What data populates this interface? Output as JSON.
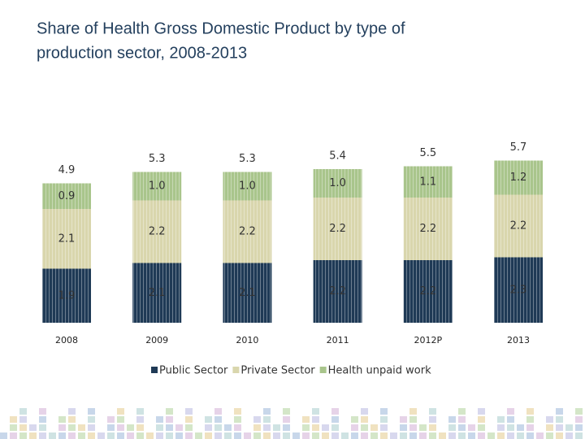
{
  "chart_data": {
    "type": "stacked-bar",
    "title": [
      "Share of Health Gross Domestic Product by type of",
      "production sector, 2008-2013"
    ],
    "categories": [
      "2008",
      "2009",
      "2010",
      "2011",
      "2012P",
      "2013"
    ],
    "series": [
      {
        "name": "Public Sector",
        "color": "#1f3a56",
        "values": [
          1.9,
          2.1,
          2.1,
          2.2,
          2.2,
          2.3
        ]
      },
      {
        "name": "Private Sector",
        "color": "#d9d6ad",
        "values": [
          2.1,
          2.2,
          2.2,
          2.2,
          2.2,
          2.2
        ]
      },
      {
        "name": "Health unpaid work",
        "color": "#a9c58c",
        "values": [
          0.9,
          1.0,
          1.0,
          1.0,
          1.1,
          1.2
        ],
        "value_labels": [
          "0.9",
          "1.0",
          "1.0",
          "1.0",
          "1.1",
          "1.2"
        ]
      }
    ],
    "totals": [
      4.9,
      5.3,
      5.3,
      5.4,
      5.5,
      5.7
    ],
    "legend": "bottom"
  }
}
